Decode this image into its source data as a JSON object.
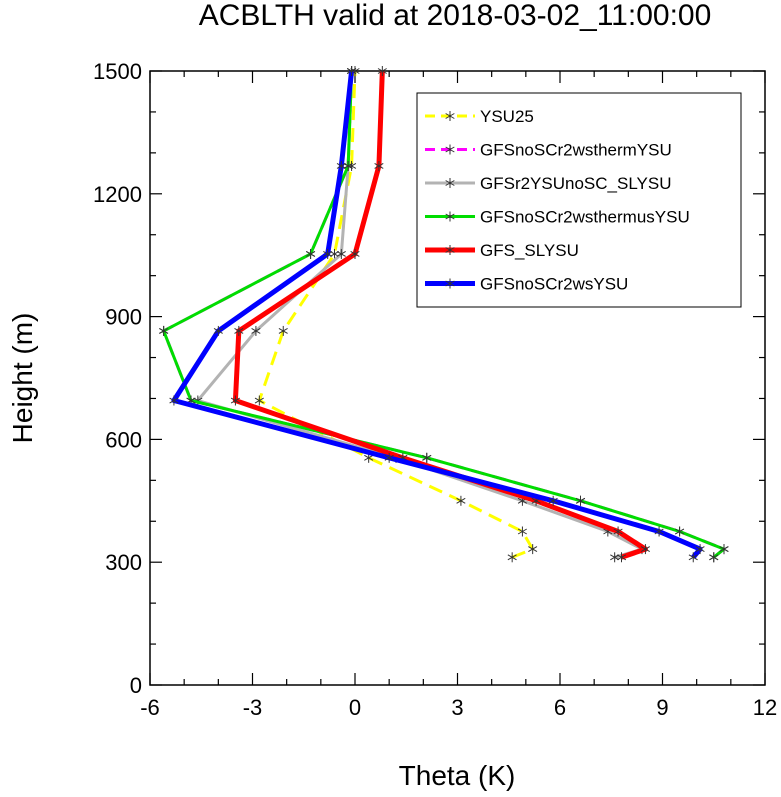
{
  "chart_data": {
    "type": "line",
    "title": "ACBLTH valid at 2018-03-02_11:00:00",
    "xlabel": "Theta (K)",
    "ylabel": "Height (m)",
    "xlim": [
      -6,
      12
    ],
    "ylim": [
      0,
      1500
    ],
    "xticks": [
      -6,
      -3,
      0,
      3,
      6,
      9,
      12
    ],
    "yticks": [
      0,
      300,
      600,
      900,
      1200,
      1500
    ],
    "xtick_labels": [
      "-6",
      "-3",
      "0",
      "3",
      "6",
      "9",
      "12"
    ],
    "ytick_labels": [
      "0",
      "300",
      "600",
      "900",
      "1200",
      "1500"
    ],
    "grid": false,
    "legend_position": "top-right",
    "series": [
      {
        "name": "YSU25",
        "color": "#ffff00",
        "dash": "dashed",
        "points": [
          [
            4.6,
            312
          ],
          [
            5.2,
            332
          ],
          [
            4.9,
            375
          ],
          [
            3.1,
            450
          ],
          [
            0.4,
            555
          ],
          [
            -2.8,
            695
          ],
          [
            -2.1,
            865
          ],
          [
            -0.6,
            1053
          ],
          [
            -0.1,
            1268
          ],
          [
            0.0,
            1500
          ]
        ]
      },
      {
        "name": "GFSnoSCr2wsthermYSU",
        "color": "#ff00ff",
        "dash": "dashed",
        "points": [
          [
            10.5,
            312
          ],
          [
            10.8,
            332
          ],
          [
            9.5,
            375
          ],
          [
            6.6,
            450
          ],
          [
            2.1,
            555
          ],
          [
            -4.8,
            695
          ],
          [
            -5.6,
            865
          ],
          [
            -1.3,
            1053
          ],
          [
            -0.2,
            1268
          ],
          [
            -0.1,
            1500
          ]
        ]
      },
      {
        "name": "GFSr2YSUnoSC_SLYSU",
        "color": "#b3b3b3",
        "dash": "solid",
        "points": [
          [
            7.6,
            312
          ],
          [
            8.4,
            332
          ],
          [
            7.4,
            375
          ],
          [
            4.9,
            450
          ],
          [
            1.2,
            555
          ],
          [
            -4.6,
            695
          ],
          [
            -2.9,
            865
          ],
          [
            -0.4,
            1053
          ],
          [
            -0.2,
            1268
          ],
          [
            -0.1,
            1500
          ]
        ]
      },
      {
        "name": "GFSnoSCr2wsthermusYSU",
        "color": "#00dd00",
        "dash": "solid",
        "points": [
          [
            10.5,
            312
          ],
          [
            10.8,
            332
          ],
          [
            9.5,
            375
          ],
          [
            6.6,
            450
          ],
          [
            2.1,
            555
          ],
          [
            -4.8,
            695
          ],
          [
            -5.6,
            865
          ],
          [
            -1.3,
            1053
          ],
          [
            -0.2,
            1268
          ],
          [
            -0.1,
            1500
          ]
        ]
      },
      {
        "name": "GFS_SLYSU",
        "color": "#ff0000",
        "dash": "solid",
        "points": [
          [
            7.8,
            312
          ],
          [
            8.5,
            332
          ],
          [
            7.7,
            375
          ],
          [
            5.3,
            450
          ],
          [
            1.4,
            555
          ],
          [
            -3.5,
            695
          ],
          [
            -3.4,
            865
          ],
          [
            0.0,
            1053
          ],
          [
            0.7,
            1268
          ],
          [
            0.8,
            1500
          ]
        ]
      },
      {
        "name": "GFSnoSCr2wsYSU",
        "color": "#0000ff",
        "dash": "solid",
        "points": [
          [
            9.9,
            312
          ],
          [
            10.1,
            332
          ],
          [
            8.9,
            375
          ],
          [
            5.8,
            450
          ],
          [
            1.0,
            555
          ],
          [
            -5.3,
            695
          ],
          [
            -4.0,
            865
          ],
          [
            -0.8,
            1053
          ],
          [
            -0.4,
            1268
          ],
          [
            -0.1,
            1500
          ]
        ]
      }
    ]
  }
}
